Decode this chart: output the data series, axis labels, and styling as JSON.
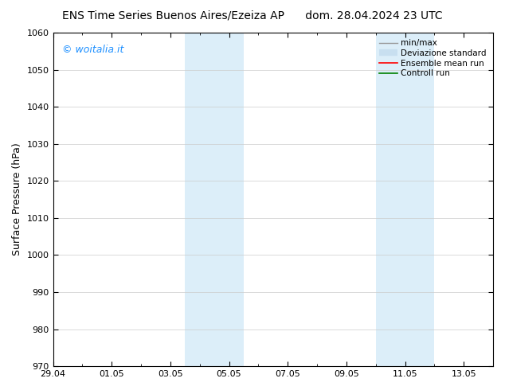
{
  "title_left": "ENS Time Series Buenos Aires/Ezeiza AP",
  "title_right": "dom. 28.04.2024 23 UTC",
  "ylabel": "Surface Pressure (hPa)",
  "ylim": [
    970,
    1060
  ],
  "yticks": [
    970,
    980,
    990,
    1000,
    1010,
    1020,
    1030,
    1040,
    1050,
    1060
  ],
  "xtick_labels": [
    "29.04",
    "01.05",
    "03.05",
    "05.05",
    "07.05",
    "09.05",
    "11.05",
    "13.05"
  ],
  "xtick_positions_days": [
    0,
    2,
    4,
    6,
    8,
    10,
    12,
    14
  ],
  "xlim": [
    0,
    15
  ],
  "shaded_bands": [
    {
      "start_day": 4.5,
      "end_day": 6.5
    },
    {
      "start_day": 11.0,
      "end_day": 13.0
    }
  ],
  "shaded_color": "#dceef9",
  "watermark_text": "© woitalia.it",
  "watermark_color": "#1e90ff",
  "legend_entries": [
    {
      "label": "min/max",
      "color": "#999999",
      "lw": 1.0,
      "linestyle": "-",
      "type": "line"
    },
    {
      "label": "Deviazione standard",
      "color": "#c8dff0",
      "lw": 6,
      "linestyle": "-",
      "type": "bar"
    },
    {
      "label": "Ensemble mean run",
      "color": "red",
      "lw": 1.2,
      "linestyle": "-",
      "type": "line"
    },
    {
      "label": "Controll run",
      "color": "green",
      "lw": 1.2,
      "linestyle": "-",
      "type": "line"
    }
  ],
  "bg_color": "#ffffff",
  "grid_color": "#cccccc",
  "title_fontsize": 10,
  "tick_fontsize": 8,
  "ylabel_fontsize": 9,
  "watermark_fontsize": 9,
  "legend_fontsize": 7.5
}
